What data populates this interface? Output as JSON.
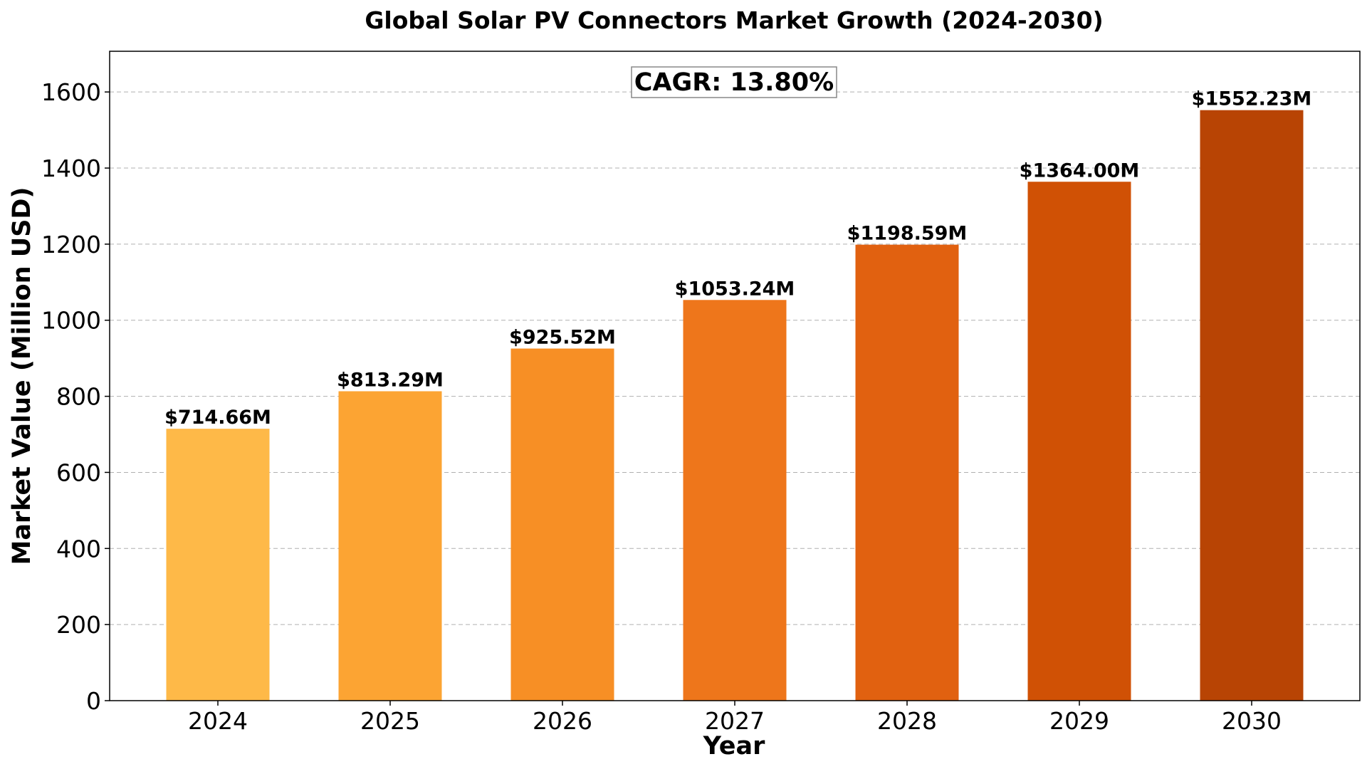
{
  "chart_data": {
    "type": "bar",
    "title": "Global Solar PV Connectors Market Growth (2024-2030)",
    "xlabel": "Year",
    "ylabel": "Market Value (Million USD)",
    "categories": [
      "2024",
      "2025",
      "2026",
      "2027",
      "2028",
      "2029",
      "2030"
    ],
    "values": [
      714.66,
      813.29,
      925.52,
      1053.24,
      1198.59,
      1364.0,
      1552.23
    ],
    "data_labels": [
      "$714.66M",
      "$813.29M",
      "$925.52M",
      "$1053.24M",
      "$1198.59M",
      "$1364.00M",
      "$1552.23M"
    ],
    "ylim": [
      0,
      1707
    ],
    "yticks": [
      0,
      200,
      400,
      600,
      800,
      1000,
      1200,
      1400,
      1600
    ],
    "grid": "y-dashed",
    "annotation": "CAGR: 13.80%",
    "bar_colors": [
      "#FEB948",
      "#FCA433",
      "#F78F25",
      "#EE761B",
      "#E16110",
      "#D05105",
      "#B84404"
    ]
  }
}
